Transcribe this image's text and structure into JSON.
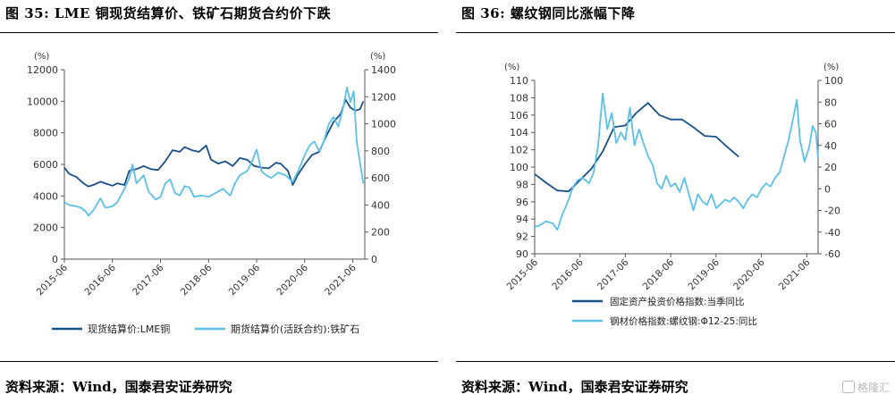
{
  "watermark": "格隆汇",
  "chart_data": [
    {
      "type": "line",
      "figure_title": "图 35: LME 铜现货结算价、铁矿石期货合约价下跌",
      "source": "资料来源：Wind，国泰君安证券研究",
      "left_axis": {
        "unit": "(%)",
        "range": [
          0,
          12000
        ],
        "ticks": [
          0,
          2000,
          4000,
          6000,
          8000,
          10000,
          12000
        ]
      },
      "right_axis": {
        "unit": "(%)",
        "range": [
          0,
          1400
        ],
        "ticks": [
          0,
          200,
          400,
          600,
          800,
          1000,
          1200,
          1400
        ]
      },
      "x_ticks": [
        "2015-06",
        "2016-06",
        "2017-06",
        "2018-06",
        "2019-06",
        "2020-06",
        "2021-06"
      ],
      "x_range": [
        2015.5,
        2021.75
      ],
      "series": [
        {
          "name": "现货结算价:LME铜",
          "axis": "left",
          "color": "#17508a",
          "points": [
            [
              2015.5,
              5800
            ],
            [
              2015.6,
              5400
            ],
            [
              2015.75,
              5200
            ],
            [
              2015.9,
              4800
            ],
            [
              2016.0,
              4600
            ],
            [
              2016.1,
              4700
            ],
            [
              2016.25,
              4900
            ],
            [
              2016.4,
              4750
            ],
            [
              2016.5,
              4650
            ],
            [
              2016.6,
              4800
            ],
            [
              2016.75,
              4700
            ],
            [
              2016.85,
              5600
            ],
            [
              2017.0,
              5700
            ],
            [
              2017.15,
              5900
            ],
            [
              2017.3,
              5700
            ],
            [
              2017.45,
              5650
            ],
            [
              2017.6,
              6200
            ],
            [
              2017.75,
              6900
            ],
            [
              2017.9,
              6800
            ],
            [
              2018.0,
              7100
            ],
            [
              2018.15,
              6900
            ],
            [
              2018.3,
              6800
            ],
            [
              2018.45,
              7200
            ],
            [
              2018.55,
              6300
            ],
            [
              2018.7,
              6050
            ],
            [
              2018.85,
              6200
            ],
            [
              2019.0,
              5900
            ],
            [
              2019.15,
              6400
            ],
            [
              2019.3,
              6300
            ],
            [
              2019.45,
              5900
            ],
            [
              2019.6,
              5800
            ],
            [
              2019.75,
              5750
            ],
            [
              2019.9,
              6100
            ],
            [
              2020.0,
              6050
            ],
            [
              2020.15,
              5600
            ],
            [
              2020.25,
              4700
            ],
            [
              2020.35,
              5300
            ],
            [
              2020.5,
              6000
            ],
            [
              2020.65,
              6600
            ],
            [
              2020.8,
              6800
            ],
            [
              2020.95,
              7800
            ],
            [
              2021.1,
              8700
            ],
            [
              2021.25,
              9200
            ],
            [
              2021.35,
              10100
            ],
            [
              2021.45,
              9600
            ],
            [
              2021.55,
              9400
            ],
            [
              2021.65,
              9500
            ],
            [
              2021.72,
              10000
            ]
          ]
        },
        {
          "name": "期货结算价(活跃合约):铁矿石",
          "axis": "right",
          "color": "#5bc0eb",
          "points": [
            [
              2015.5,
              420
            ],
            [
              2015.6,
              400
            ],
            [
              2015.75,
              390
            ],
            [
              2015.85,
              380
            ],
            [
              2015.95,
              350
            ],
            [
              2016.0,
              320
            ],
            [
              2016.1,
              360
            ],
            [
              2016.25,
              450
            ],
            [
              2016.35,
              380
            ],
            [
              2016.5,
              390
            ],
            [
              2016.6,
              420
            ],
            [
              2016.75,
              520
            ],
            [
              2016.85,
              600
            ],
            [
              2016.92,
              700
            ],
            [
              2017.0,
              560
            ],
            [
              2017.15,
              620
            ],
            [
              2017.25,
              500
            ],
            [
              2017.4,
              440
            ],
            [
              2017.5,
              460
            ],
            [
              2017.6,
              560
            ],
            [
              2017.7,
              590
            ],
            [
              2017.8,
              490
            ],
            [
              2017.9,
              470
            ],
            [
              2018.0,
              540
            ],
            [
              2018.1,
              530
            ],
            [
              2018.2,
              460
            ],
            [
              2018.35,
              470
            ],
            [
              2018.5,
              460
            ],
            [
              2018.65,
              490
            ],
            [
              2018.8,
              520
            ],
            [
              2018.95,
              470
            ],
            [
              2019.05,
              560
            ],
            [
              2019.15,
              620
            ],
            [
              2019.3,
              650
            ],
            [
              2019.4,
              720
            ],
            [
              2019.5,
              810
            ],
            [
              2019.6,
              650
            ],
            [
              2019.7,
              620
            ],
            [
              2019.8,
              600
            ],
            [
              2019.95,
              640
            ],
            [
              2020.1,
              620
            ],
            [
              2020.25,
              570
            ],
            [
              2020.35,
              640
            ],
            [
              2020.5,
              770
            ],
            [
              2020.6,
              840
            ],
            [
              2020.7,
              870
            ],
            [
              2020.8,
              800
            ],
            [
              2020.9,
              870
            ],
            [
              2021.0,
              1000
            ],
            [
              2021.1,
              1050
            ],
            [
              2021.2,
              980
            ],
            [
              2021.3,
              1120
            ],
            [
              2021.38,
              1270
            ],
            [
              2021.45,
              1160
            ],
            [
              2021.52,
              1240
            ],
            [
              2021.58,
              870
            ],
            [
              2021.63,
              760
            ],
            [
              2021.68,
              650
            ],
            [
              2021.72,
              560
            ]
          ]
        }
      ]
    },
    {
      "type": "line",
      "figure_title": "图 36: 螺纹钢同比涨幅下降",
      "source": "资料来源：Wind，国泰君安证券研究",
      "left_axis": {
        "unit": "(%)",
        "range": [
          90,
          110
        ],
        "ticks": [
          90,
          92,
          94,
          96,
          98,
          100,
          102,
          104,
          106,
          108,
          110
        ]
      },
      "right_axis": {
        "unit": "(%)",
        "range": [
          -60,
          100
        ],
        "ticks": [
          -60,
          -40,
          -20,
          0,
          20,
          40,
          60,
          80,
          100
        ]
      },
      "x_ticks": [
        "2015-06",
        "2016-06",
        "2017-06",
        "2018-06",
        "2019-06",
        "2020-06",
        "2021-06"
      ],
      "x_range": [
        2015.5,
        2021.75
      ],
      "series": [
        {
          "name": "固定资产投资价格指数:当季同比",
          "axis": "left",
          "color": "#17508a",
          "points": [
            [
              2015.5,
              99.2
            ],
            [
              2015.75,
              98.2
            ],
            [
              2016.0,
              97.3
            ],
            [
              2016.25,
              97.2
            ],
            [
              2016.5,
              98.5
            ],
            [
              2016.75,
              99.8
            ],
            [
              2017.0,
              101.8
            ],
            [
              2017.25,
              104.6
            ],
            [
              2017.5,
              104.8
            ],
            [
              2017.75,
              106.3
            ],
            [
              2018.0,
              107.4
            ],
            [
              2018.25,
              106.0
            ],
            [
              2018.5,
              105.5
            ],
            [
              2018.75,
              105.5
            ],
            [
              2019.0,
              104.6
            ],
            [
              2019.25,
              103.6
            ],
            [
              2019.5,
              103.5
            ],
            [
              2019.75,
              102.3
            ],
            [
              2020.0,
              101.2
            ]
          ]
        },
        {
          "name": "钢材价格指数:螺纹钢:Φ12-25:同比",
          "axis": "right",
          "color": "#5bc0eb",
          "points": [
            [
              2015.5,
              -35
            ],
            [
              2015.6,
              -34
            ],
            [
              2015.75,
              -30
            ],
            [
              2015.9,
              -32
            ],
            [
              2016.0,
              -38
            ],
            [
              2016.1,
              -25
            ],
            [
              2016.25,
              -10
            ],
            [
              2016.35,
              2
            ],
            [
              2016.45,
              8
            ],
            [
              2016.55,
              10
            ],
            [
              2016.7,
              5
            ],
            [
              2016.8,
              15
            ],
            [
              2016.9,
              40
            ],
            [
              2017.0,
              88
            ],
            [
              2017.1,
              55
            ],
            [
              2017.2,
              70
            ],
            [
              2017.3,
              42
            ],
            [
              2017.4,
              52
            ],
            [
              2017.5,
              45
            ],
            [
              2017.6,
              75
            ],
            [
              2017.7,
              40
            ],
            [
              2017.8,
              55
            ],
            [
              2017.9,
              42
            ],
            [
              2018.0,
              30
            ],
            [
              2018.1,
              22
            ],
            [
              2018.2,
              5
            ],
            [
              2018.3,
              0
            ],
            [
              2018.4,
              12
            ],
            [
              2018.5,
              2
            ],
            [
              2018.6,
              5
            ],
            [
              2018.7,
              -3
            ],
            [
              2018.8,
              10
            ],
            [
              2018.9,
              -5
            ],
            [
              2019.0,
              -20
            ],
            [
              2019.1,
              -5
            ],
            [
              2019.2,
              -12
            ],
            [
              2019.3,
              -15
            ],
            [
              2019.4,
              -5
            ],
            [
              2019.5,
              -18
            ],
            [
              2019.6,
              -14
            ],
            [
              2019.7,
              -10
            ],
            [
              2019.8,
              -12
            ],
            [
              2019.9,
              -8
            ],
            [
              2020.0,
              -12
            ],
            [
              2020.1,
              -18
            ],
            [
              2020.2,
              -10
            ],
            [
              2020.3,
              -5
            ],
            [
              2020.4,
              -8
            ],
            [
              2020.5,
              0
            ],
            [
              2020.6,
              5
            ],
            [
              2020.7,
              2
            ],
            [
              2020.8,
              10
            ],
            [
              2020.9,
              15
            ],
            [
              2021.0,
              30
            ],
            [
              2021.1,
              45
            ],
            [
              2021.2,
              65
            ],
            [
              2021.28,
              82
            ],
            [
              2021.35,
              45
            ],
            [
              2021.45,
              25
            ],
            [
              2021.55,
              38
            ],
            [
              2021.63,
              58
            ],
            [
              2021.7,
              52
            ],
            [
              2021.75,
              28
            ]
          ]
        }
      ]
    }
  ]
}
